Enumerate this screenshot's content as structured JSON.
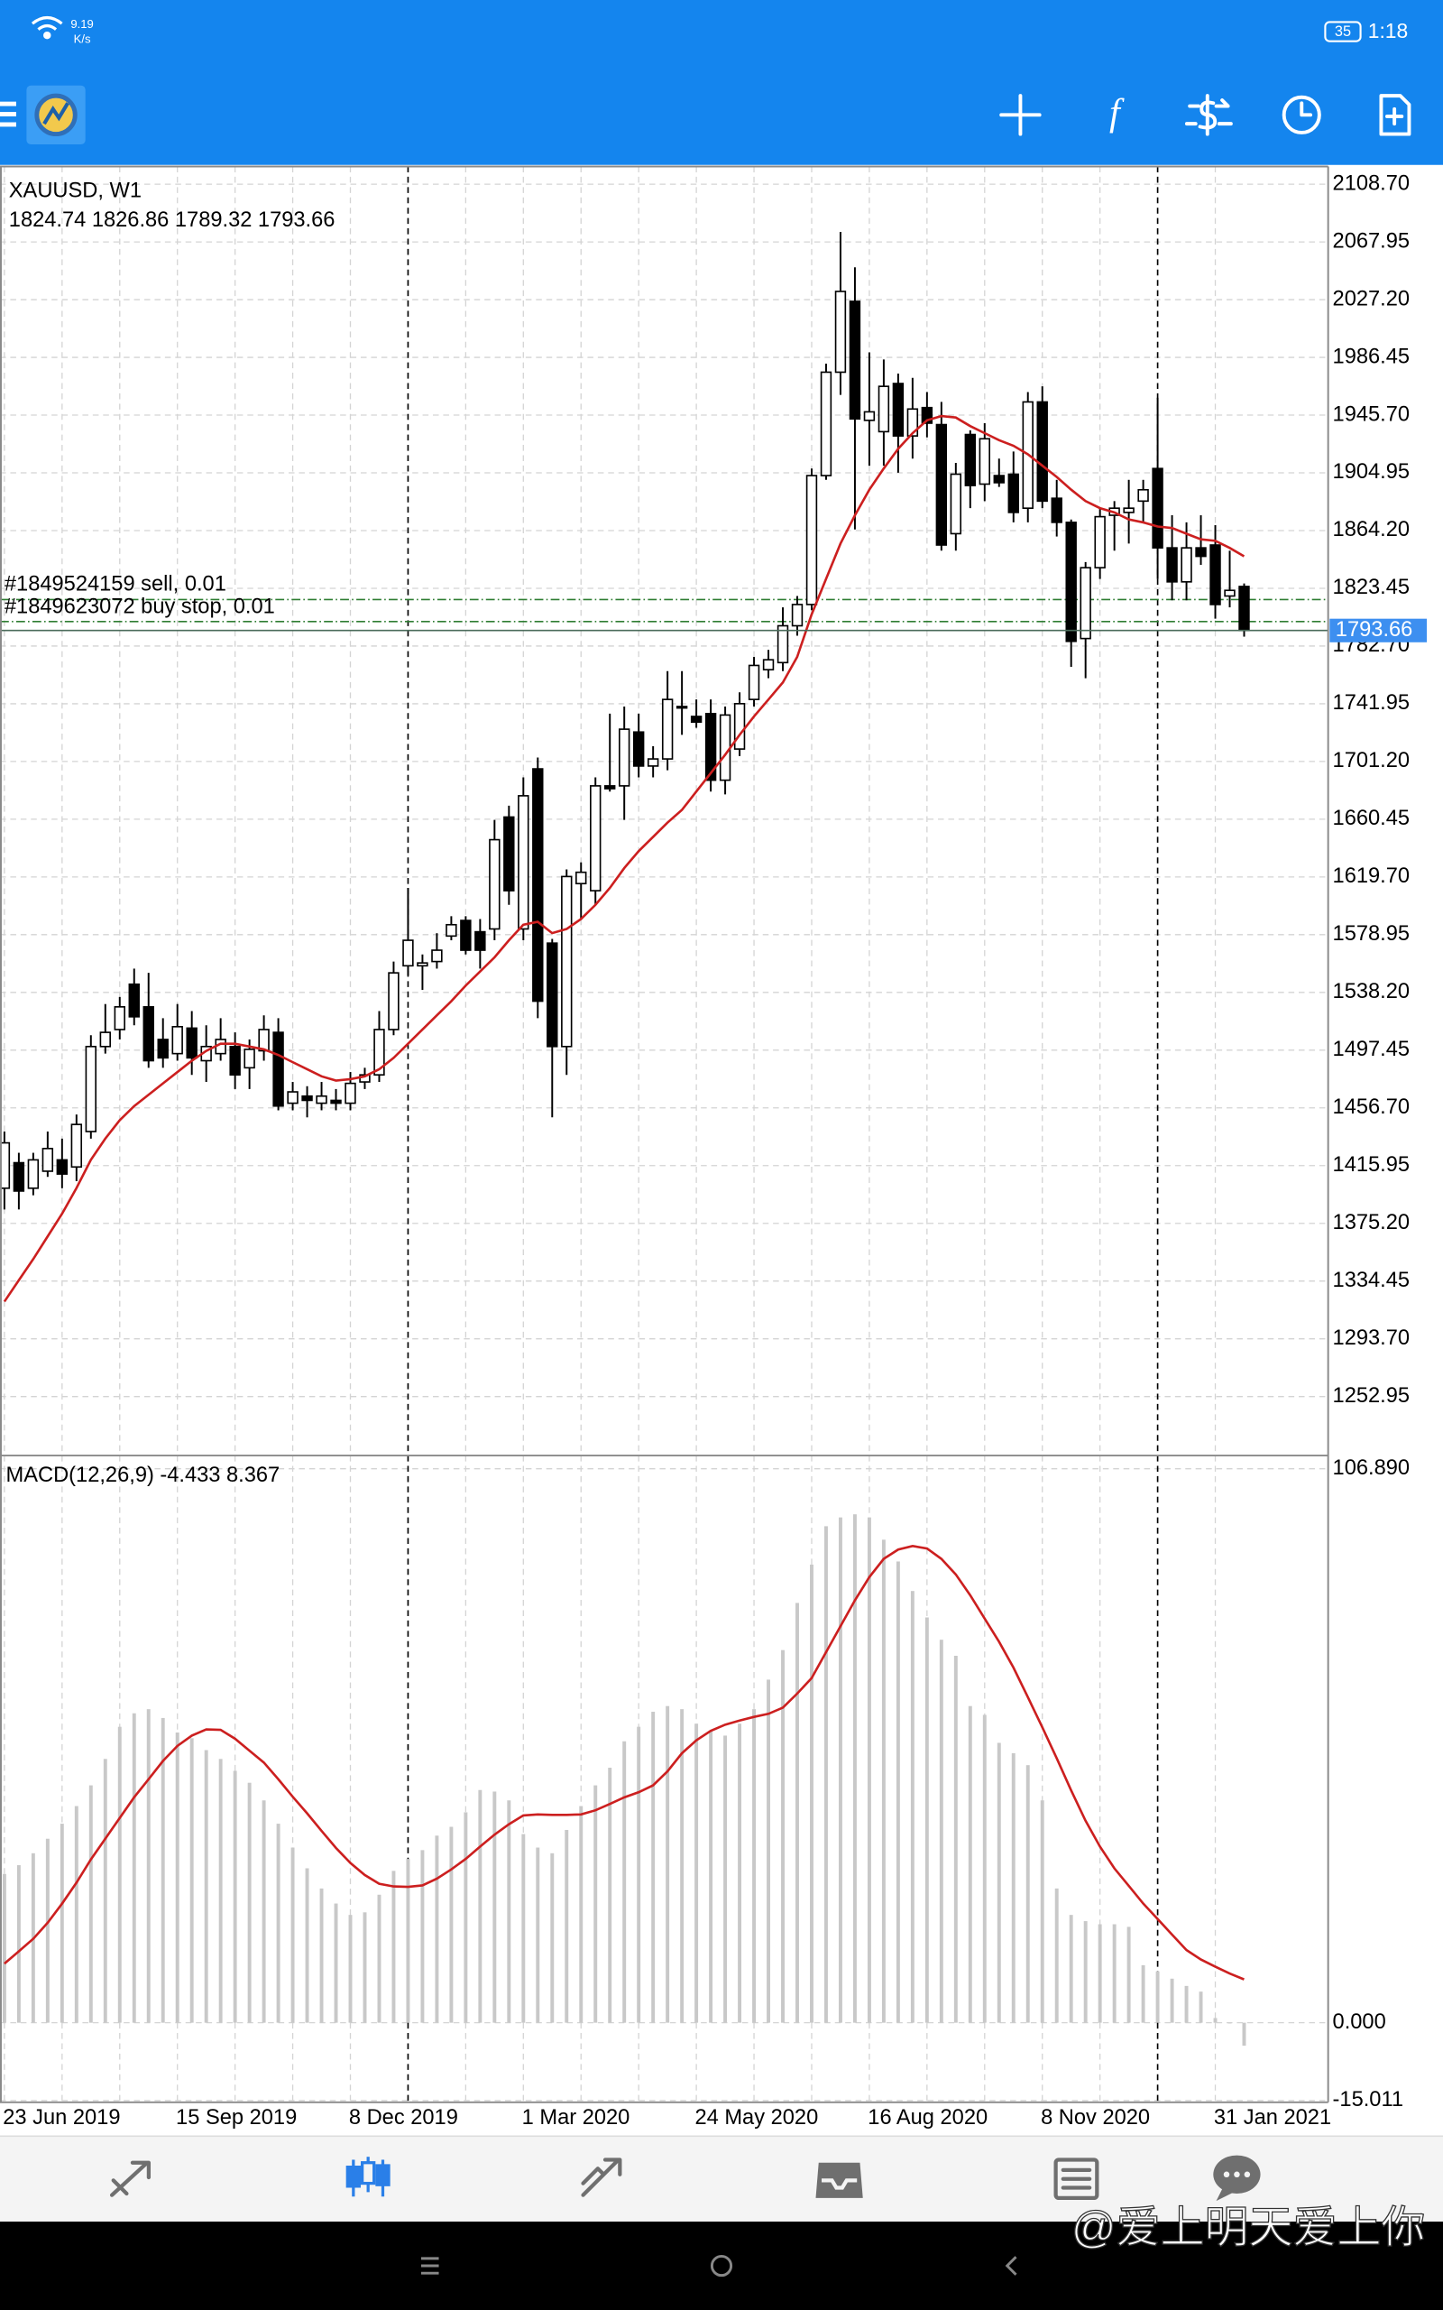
{
  "status_bar": {
    "net_speed": "9.19",
    "net_unit": "K/s",
    "battery": "35",
    "time": "1:18"
  },
  "chart_data": {
    "type": "candlestick",
    "title": "XAUUSD, W1",
    "categories": [
      "23 Jun 2019",
      null,
      null,
      null,
      null,
      null,
      null,
      null,
      null,
      null,
      null,
      null,
      "15 Sep 2019",
      null,
      null,
      null,
      null,
      null,
      null,
      null,
      null,
      null,
      null,
      null,
      "8 Dec 2019",
      null,
      null,
      null,
      null,
      null,
      null,
      null,
      null,
      null,
      null,
      null,
      "1 Mar 2020",
      null,
      null,
      null,
      null,
      null,
      null,
      null,
      null,
      null,
      null,
      null,
      "24 May 2020",
      null,
      null,
      null,
      null,
      null,
      null,
      null,
      null,
      null,
      null,
      null,
      "16 Aug 2020",
      null,
      null,
      null,
      null,
      null,
      null,
      null,
      null,
      null,
      null,
      null,
      "8 Nov 2020",
      null,
      null,
      null,
      null,
      null,
      null,
      null,
      null,
      null,
      null,
      null,
      "31 Jan 2021",
      null,
      null
    ],
    "candles": {
      "open": [
        1400,
        1418,
        1400,
        1412,
        1420,
        1415,
        1440,
        1500,
        1512,
        1544,
        1528,
        1505,
        1495,
        1513,
        1490,
        1495,
        1500,
        1485,
        1497,
        1510,
        1460,
        1465,
        1460,
        1462,
        1460,
        1475,
        1480,
        1512,
        1557,
        1557,
        1560,
        1578,
        1589,
        1581,
        1583,
        1662,
        1583,
        1696,
        1573,
        1500,
        1615,
        1610,
        1684,
        1684,
        1722,
        1698,
        1703,
        1740,
        1733,
        1735,
        1688,
        1710,
        1745,
        1766,
        1771,
        1797,
        1812,
        1903,
        1976,
        2026,
        1942,
        1934,
        1968,
        1931,
        1951,
        1939,
        1862,
        1932,
        1897,
        1903,
        1904,
        1880,
        1955,
        1887,
        1870,
        1788,
        1838,
        1875,
        1877,
        1885,
        1908,
        1852,
        1828,
        1852,
        1854,
        1818,
        1824.74
      ],
      "high": [
        1440,
        1425,
        1425,
        1440,
        1435,
        1452,
        1508,
        1530,
        1535,
        1555,
        1552,
        1520,
        1530,
        1525,
        1515,
        1520,
        1510,
        1505,
        1522,
        1520,
        1475,
        1472,
        1475,
        1470,
        1482,
        1485,
        1525,
        1560,
        1612,
        1565,
        1580,
        1592,
        1592,
        1590,
        1660,
        1670,
        1690,
        1704,
        1576,
        1625,
        1630,
        1690,
        1735,
        1740,
        1735,
        1712,
        1765,
        1765,
        1745,
        1745,
        1740,
        1750,
        1775,
        1780,
        1810,
        1818,
        1908,
        1982,
        2075,
        2050,
        1990,
        1985,
        1975,
        1972,
        1962,
        1955,
        1912,
        1935,
        1940,
        1915,
        1920,
        1962,
        1966,
        1900,
        1872,
        1842,
        1880,
        1885,
        1900,
        1900,
        1958,
        1875,
        1870,
        1875,
        1868,
        1850,
        1826.86
      ],
      "low": [
        1385,
        1385,
        1395,
        1408,
        1400,
        1405,
        1435,
        1495,
        1505,
        1515,
        1485,
        1485,
        1490,
        1480,
        1475,
        1490,
        1470,
        1470,
        1490,
        1455,
        1455,
        1450,
        1455,
        1455,
        1455,
        1470,
        1475,
        1508,
        1550,
        1540,
        1555,
        1575,
        1565,
        1555,
        1575,
        1600,
        1575,
        1520,
        1450,
        1480,
        1590,
        1600,
        1680,
        1660,
        1690,
        1690,
        1695,
        1720,
        1725,
        1680,
        1678,
        1705,
        1740,
        1760,
        1765,
        1790,
        1808,
        1900,
        1960,
        1865,
        1910,
        1910,
        1905,
        1915,
        1930,
        1850,
        1850,
        1880,
        1885,
        1895,
        1870,
        1870,
        1880,
        1860,
        1768,
        1760,
        1830,
        1850,
        1855,
        1870,
        1830,
        1815,
        1815,
        1840,
        1802,
        1810,
        1789.32
      ],
      "close": [
        1432,
        1398,
        1420,
        1428,
        1410,
        1445,
        1500,
        1510,
        1528,
        1521,
        1490,
        1492,
        1514,
        1492,
        1500,
        1505,
        1480,
        1498,
        1512,
        1458,
        1468,
        1462,
        1465,
        1460,
        1474,
        1480,
        1512,
        1552,
        1575,
        1559,
        1568,
        1586,
        1568,
        1568,
        1646,
        1610,
        1677,
        1532,
        1500,
        1620,
        1623,
        1684,
        1682,
        1724,
        1698,
        1703,
        1745,
        1740,
        1729,
        1688,
        1734,
        1742,
        1769,
        1773,
        1797,
        1812,
        1903,
        1976,
        2033,
        1943,
        1948,
        1966,
        1931,
        1950,
        1940,
        1854,
        1904,
        1896,
        1929,
        1898,
        1877,
        1955,
        1885,
        1870,
        1786,
        1838,
        1874,
        1880,
        1880,
        1893,
        1852,
        1828,
        1852,
        1846,
        1812,
        1822,
        1793.66
      ]
    },
    "ma": {
      "color": "#cc1f1f",
      "values": [
        1320,
        1335,
        1350,
        1366,
        1382,
        1400,
        1420,
        1435,
        1448,
        1458,
        1466,
        1474,
        1482,
        1490,
        1497,
        1502,
        1502,
        1500,
        1498,
        1494,
        1489,
        1484,
        1479,
        1476,
        1477,
        1479,
        1484,
        1492,
        1502,
        1512,
        1522,
        1532,
        1543,
        1553,
        1563,
        1575,
        1586,
        1588,
        1580,
        1583,
        1590,
        1600,
        1612,
        1626,
        1638,
        1648,
        1658,
        1667,
        1680,
        1693,
        1706,
        1720,
        1733,
        1745,
        1757,
        1775,
        1805,
        1830,
        1855,
        1875,
        1893,
        1908,
        1922,
        1933,
        1942,
        1945,
        1944,
        1938,
        1933,
        1928,
        1924,
        1918,
        1910,
        1902,
        1893,
        1885,
        1880,
        1877,
        1872,
        1870,
        1867,
        1866,
        1862,
        1858,
        1857,
        1852,
        1846
      ]
    },
    "orders": [
      {
        "label": "#1849524159 sell, 0.01",
        "price": 1815.5
      },
      {
        "label": "#1849623072 buy stop, 0.01",
        "price": 1800
      }
    ],
    "ylim": [
      1211.3,
      2121.2
    ],
    "yticks": [
      {
        "value": 2108.7,
        "label": "2108.70"
      },
      2067.95,
      {
        "value": 2027.2,
        "label": "2027.20"
      },
      1986.45,
      {
        "value": 1945.7,
        "label": "1945.70"
      },
      1904.95,
      {
        "value": 1864.2,
        "label": "1864.20"
      },
      1823.45,
      {
        "value": 1782.7,
        "label": "1782.70"
      },
      1741.95,
      {
        "value": 1701.2,
        "label": "1701.20"
      },
      1660.45,
      {
        "value": 1619.7,
        "label": "1619.70"
      },
      1578.95,
      {
        "value": 1538.2,
        "label": "1538.20"
      },
      1497.45,
      {
        "value": 1456.7,
        "label": "1456.70"
      },
      1415.95,
      {
        "value": 1375.2,
        "label": "1375.20"
      },
      1334.45,
      {
        "value": 1293.7,
        "label": "1293.70"
      },
      1252.95
    ],
    "grid": true,
    "macd": {
      "label": "MACD(12,26,9)",
      "histogram_color": "#c8c8c8",
      "signal_color": "#cc1f1f",
      "histogram": [
        28.7,
        30.4,
        32.7,
        35.5,
        38.4,
        41.8,
        45.8,
        50.9,
        57.1,
        59.7,
        60.5,
        58.8,
        56,
        54.9,
        52.6,
        50.9,
        48.6,
        46.3,
        42.9,
        38.4,
        33.8,
        29.8,
        25.9,
        23,
        20.8,
        21.3,
        24.7,
        29.3,
        31.6,
        33.3,
        36.1,
        37.8,
        40.6,
        44.9,
        44.6,
        42.9,
        36.4,
        33.8,
        32.7,
        37.2,
        41.8,
        45.8,
        49.2,
        54.3,
        57.1,
        60,
        61.1,
        60.5,
        57.7,
        56.3,
        55.4,
        57.7,
        60.5,
        66.2,
        71.9,
        81,
        88.4,
        95.8,
        97.5,
        98.1,
        97.5,
        93.2,
        89,
        83.3,
        78.2,
        73.9,
        70.8,
        61.1,
        59.4,
        54,
        52,
        49.7,
        42.9,
        25.9,
        20.8,
        19.6,
        19,
        19,
        18.5,
        11.1,
        9.9,
        8.5,
        7.1,
        6,
        0.9,
        0,
        -4.433
      ],
      "signal": [
        11.4,
        13.8,
        16.2,
        19.3,
        23,
        27,
        31.5,
        35.5,
        39.5,
        43.5,
        47,
        50.5,
        53.4,
        55.4,
        56.6,
        56.5,
        54.8,
        52.5,
        50.2,
        47,
        43.6,
        40.4,
        37,
        33.7,
        30.8,
        28.5,
        26.8,
        26.3,
        26.2,
        26.5,
        27.8,
        29.6,
        31.6,
        34,
        36.3,
        38.3,
        40,
        40.2,
        40.1,
        40.1,
        40.2,
        41,
        42.2,
        43.5,
        44.5,
        45.8,
        48.5,
        52,
        54.5,
        56.3,
        57.5,
        58.3,
        59,
        59.6,
        60.8,
        63.5,
        66.5,
        71.5,
        76.5,
        81.5,
        86,
        89.5,
        91.3,
        92,
        91.5,
        89.5,
        86.5,
        82.5,
        78,
        73.5,
        68.5,
        62.8,
        57,
        51,
        44.8,
        39,
        34,
        29.8,
        26.4,
        23,
        20,
        17,
        14,
        12.2,
        10.8,
        9.5,
        8.367
      ],
      "ylim": [
        -15.35,
        109.44
      ],
      "yticks": [
        {
          "value": 106.89,
          "label": "106.890"
        },
        {
          "value": 0,
          "label": "0.000"
        },
        -15.011
      ]
    }
  },
  "watermark": "@爱上明天爱上你"
}
